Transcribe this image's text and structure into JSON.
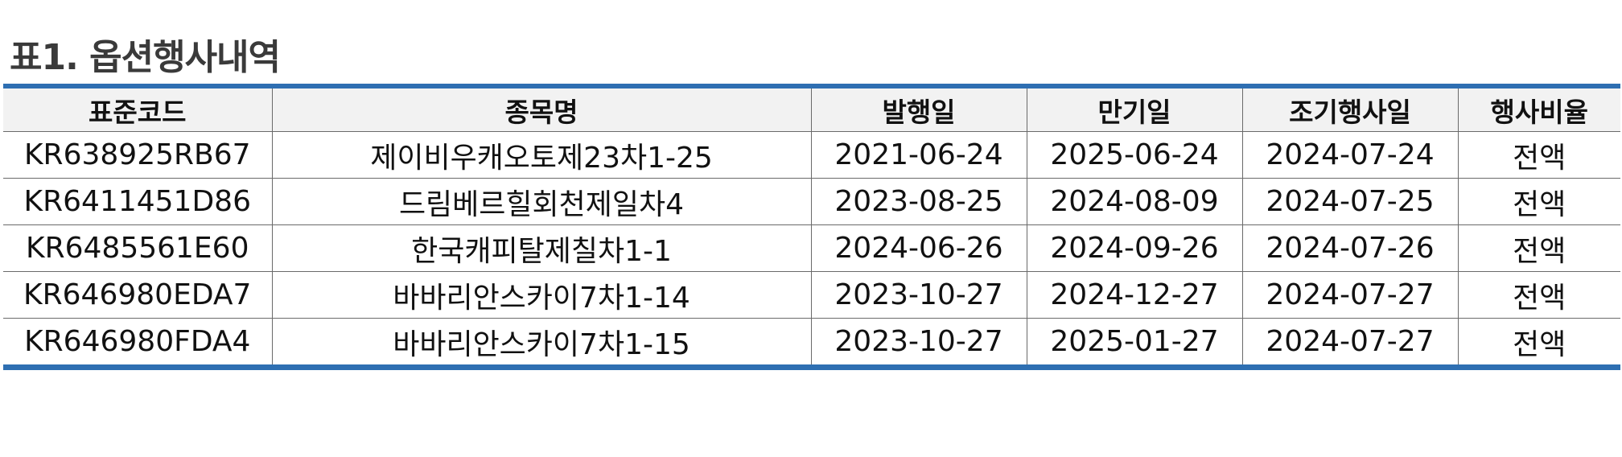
{
  "caption": "표1. 옵션행사내역",
  "table": {
    "headers": [
      "표준코드",
      "종목명",
      "발행일",
      "만기일",
      "조기행사일",
      "행사비율"
    ],
    "rows": [
      [
        "KR638925RB67",
        "제이비우캐오토제23차1-25",
        "2021-06-24",
        "2025-06-24",
        "2024-07-24",
        "전액"
      ],
      [
        "KR6411451D86",
        "드림베르힐회천제일차4",
        "2023-08-25",
        "2024-08-09",
        "2024-07-25",
        "전액"
      ],
      [
        "KR6485561E60",
        "한국캐피탈제칠차1-1",
        "2024-06-26",
        "2024-09-26",
        "2024-07-26",
        "전액"
      ],
      [
        "KR646980EDA7",
        "바바리안스카이7차1-14",
        "2023-10-27",
        "2024-12-27",
        "2024-07-27",
        "전액"
      ],
      [
        "KR646980FDA4",
        "바바리안스카이7차1-15",
        "2023-10-27",
        "2025-01-27",
        "2024-07-27",
        "전액"
      ]
    ]
  },
  "colors": {
    "rule": "#2e6fb2",
    "header_bg": "#f2f2f2",
    "caption_text": "#3a3a3a"
  }
}
